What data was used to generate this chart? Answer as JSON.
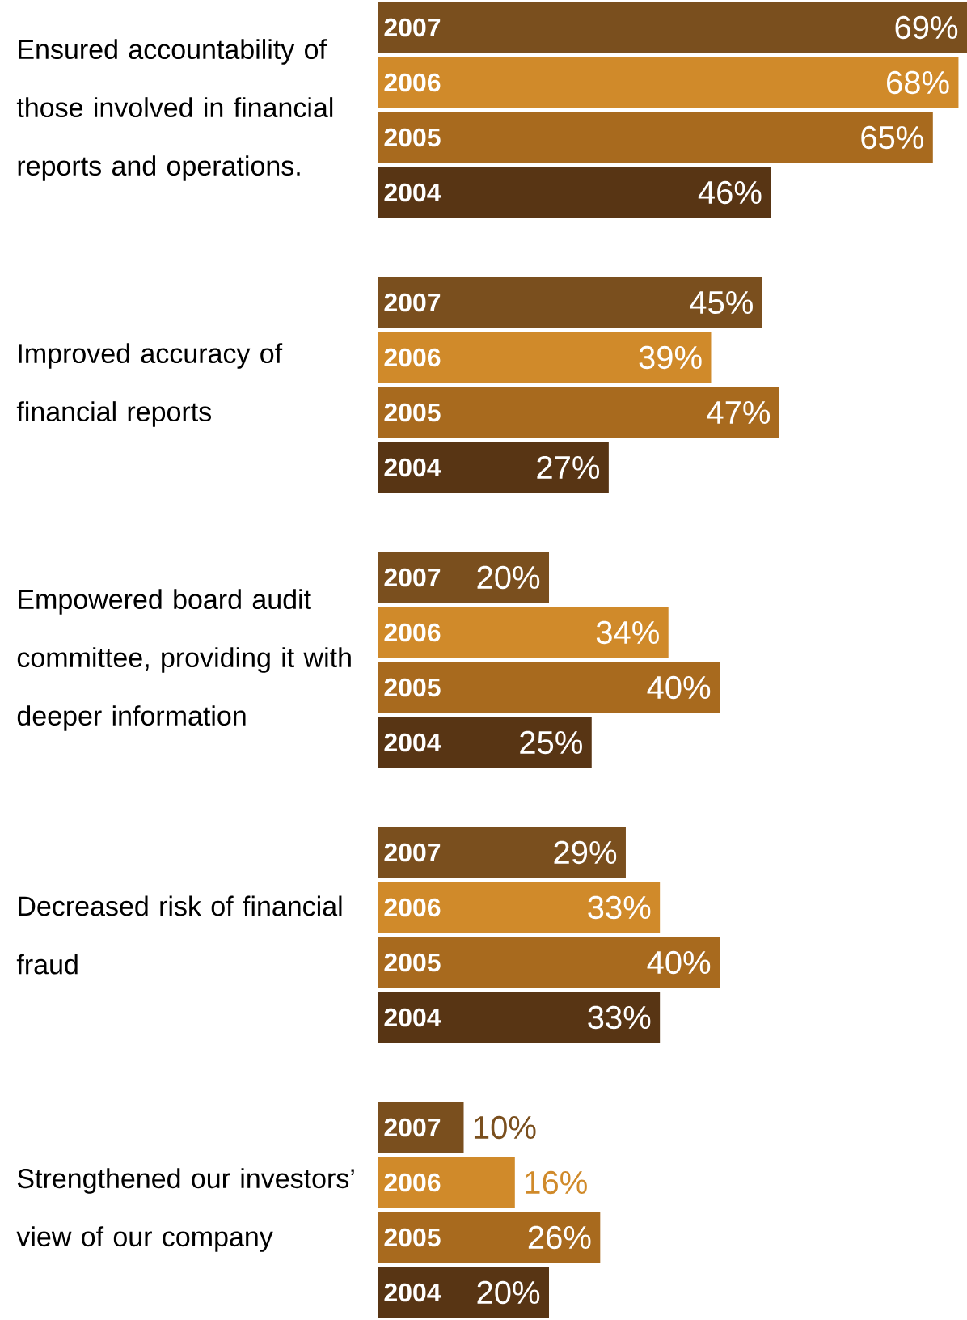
{
  "chart_data": {
    "type": "bar",
    "orientation": "horizontal",
    "categories": [
      "Ensured accountability of those involved in financial reports and operations.",
      "Improved accuracy of financial reports",
      "Empowered board audit committee, providing it with deeper information",
      "Decreased risk of financial fraud",
      "Strengthened our investors’ view of our company"
    ],
    "series": [
      {
        "name": "2007",
        "color": "#7a4f1e",
        "values": [
          69,
          45,
          20,
          29,
          10
        ],
        "value_labels": [
          "69%",
          "45%",
          "20%",
          "29%",
          "10%"
        ]
      },
      {
        "name": "2006",
        "color": "#d08a2a",
        "values": [
          68,
          39,
          34,
          33,
          16
        ],
        "value_labels": [
          "68%",
          "39%",
          "34%",
          "33%",
          "16%"
        ]
      },
      {
        "name": "2005",
        "color": "#a86a1e",
        "values": [
          65,
          47,
          40,
          40,
          26
        ],
        "value_labels": [
          "65%",
          "47%",
          "40%",
          "40%",
          "26%"
        ]
      },
      {
        "name": "2004",
        "color": "#583514",
        "values": [
          46,
          27,
          25,
          33,
          20
        ],
        "value_labels": [
          "46%",
          "27%",
          "25%",
          "33%",
          "20%"
        ]
      }
    ]
  }
}
